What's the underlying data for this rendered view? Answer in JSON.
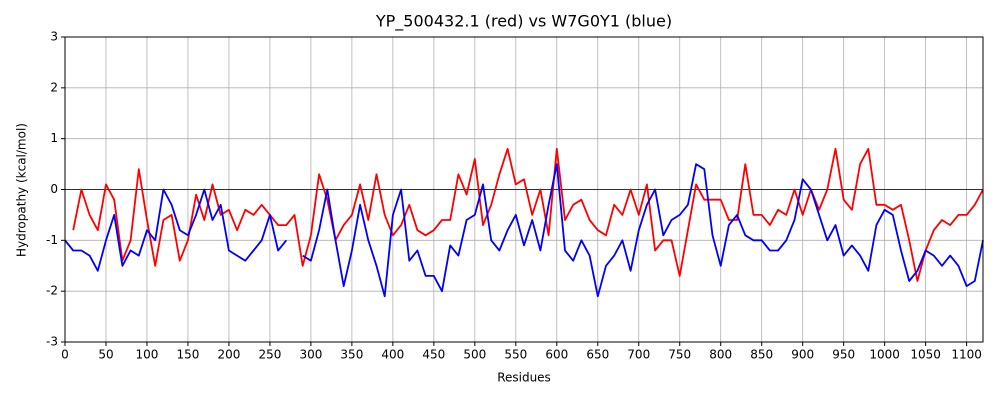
{
  "chart_data": {
    "type": "line",
    "title": "YP_500432.1 (red) vs W7G0Y1 (blue)",
    "x_label": "Residues",
    "y_label": "Hydropathy (kcal/mol)",
    "x": [
      0,
      10,
      20,
      30,
      40,
      50,
      60,
      70,
      80,
      90,
      100,
      110,
      120,
      130,
      140,
      150,
      160,
      170,
      180,
      190,
      200,
      210,
      220,
      230,
      240,
      250,
      260,
      270,
      280,
      290,
      300,
      310,
      320,
      330,
      340,
      350,
      360,
      370,
      380,
      390,
      400,
      410,
      420,
      430,
      440,
      450,
      460,
      470,
      480,
      490,
      500,
      510,
      520,
      530,
      540,
      550,
      560,
      570,
      580,
      590,
      600,
      610,
      620,
      630,
      640,
      650,
      660,
      670,
      680,
      690,
      700,
      710,
      720,
      730,
      740,
      750,
      760,
      770,
      780,
      790,
      800,
      810,
      820,
      830,
      840,
      850,
      860,
      870,
      880,
      890,
      900,
      910,
      920,
      930,
      940,
      950,
      960,
      970,
      980,
      990,
      1000,
      1010,
      1020,
      1030,
      1040,
      1050,
      1060,
      1070,
      1080,
      1090,
      1100,
      1110,
      1120
    ],
    "series": [
      {
        "name": "YP_500432.1",
        "color": "#ff0000",
        "values": [
          null,
          -0.8,
          0.0,
          -0.5,
          -0.8,
          0.1,
          -0.2,
          -1.4,
          -1.0,
          0.4,
          -0.6,
          -1.5,
          -0.6,
          -0.5,
          -1.4,
          -1.0,
          -0.1,
          -0.6,
          0.1,
          -0.5,
          -0.4,
          -0.8,
          -0.4,
          -0.5,
          -0.3,
          -0.5,
          -0.7,
          -0.7,
          -0.5,
          -1.5,
          -0.9,
          0.3,
          -0.2,
          -1.0,
          -0.7,
          -0.5,
          0.1,
          -0.6,
          0.3,
          -0.5,
          -0.9,
          -0.7,
          -0.3,
          -0.8,
          -0.9,
          -0.8,
          -0.6,
          -0.6,
          0.3,
          -0.1,
          0.6,
          -0.7,
          -0.3,
          0.3,
          0.8,
          0.1,
          0.2,
          -0.5,
          0.0,
          -0.9,
          0.8,
          -0.6,
          -0.3,
          -0.2,
          -0.6,
          -0.8,
          -0.9,
          -0.3,
          -0.5,
          0.0,
          -0.5,
          0.1,
          -1.2,
          -1.0,
          -1.0,
          -1.7,
          -0.8,
          0.1,
          -0.2,
          -0.2,
          -0.2,
          -0.6,
          -0.6,
          0.5,
          -0.5,
          -0.5,
          -0.7,
          -0.4,
          -0.5,
          0.0,
          -0.5,
          0.0,
          -0.4,
          0.0,
          0.8,
          -0.2,
          -0.4,
          0.5,
          0.8,
          -0.3,
          -0.3,
          -0.4,
          -0.3,
          -1.0,
          -1.8,
          -1.2,
          -0.8,
          -0.6,
          -0.7,
          -0.5,
          -0.5,
          -0.3,
          0.0
        ]
      },
      {
        "name": "W7G0Y1",
        "color": "#0000ff",
        "values": [
          -1.0,
          -1.2,
          -1.2,
          -1.3,
          -1.6,
          -1.0,
          -0.5,
          -1.5,
          -1.2,
          -1.3,
          -0.8,
          -1.0,
          0.0,
          -0.3,
          -0.8,
          -0.9,
          -0.5,
          0.0,
          -0.6,
          -0.3,
          -1.2,
          -1.3,
          -1.4,
          -1.2,
          -1.0,
          -0.5,
          -1.2,
          -1.0,
          null,
          -1.3,
          -1.4,
          -0.8,
          0.0,
          -1.0,
          -1.9,
          -1.2,
          -0.3,
          -1.0,
          -1.5,
          -2.1,
          -0.5,
          0.0,
          -1.4,
          -1.2,
          -1.7,
          -1.7,
          -2.0,
          -1.1,
          -1.3,
          -0.6,
          -0.5,
          0.1,
          -1.0,
          -1.2,
          -0.8,
          -0.5,
          -1.1,
          -0.6,
          -1.2,
          -0.3,
          0.5,
          -1.2,
          -1.4,
          -1.0,
          -1.3,
          -2.1,
          -1.5,
          -1.3,
          -1.0,
          -1.6,
          -0.8,
          -0.3,
          0.0,
          -0.9,
          -0.6,
          -0.5,
          -0.3,
          0.5,
          0.4,
          -0.9,
          -1.5,
          -0.7,
          -0.5,
          -0.9,
          -1.0,
          -1.0,
          -1.2,
          -1.2,
          -1.0,
          -0.6,
          0.2,
          0.0,
          -0.5,
          -1.0,
          -0.7,
          -1.3,
          -1.1,
          -1.3,
          -1.6,
          -0.7,
          -0.4,
          -0.5,
          -1.2,
          -1.8,
          -1.6,
          -1.2,
          -1.3,
          -1.5,
          -1.3,
          -1.5,
          -1.9,
          -1.8,
          -1.0
        ]
      }
    ],
    "xlim": [
      0,
      1120
    ],
    "ylim": [
      -3,
      3
    ],
    "xticks": [
      0,
      50,
      100,
      150,
      200,
      250,
      300,
      350,
      400,
      450,
      500,
      550,
      600,
      650,
      700,
      750,
      800,
      850,
      900,
      950,
      1000,
      1050,
      1100
    ],
    "yticks": [
      -3,
      -2,
      -1,
      0,
      1,
      2,
      3
    ],
    "grid": true,
    "reference_line": 0
  }
}
